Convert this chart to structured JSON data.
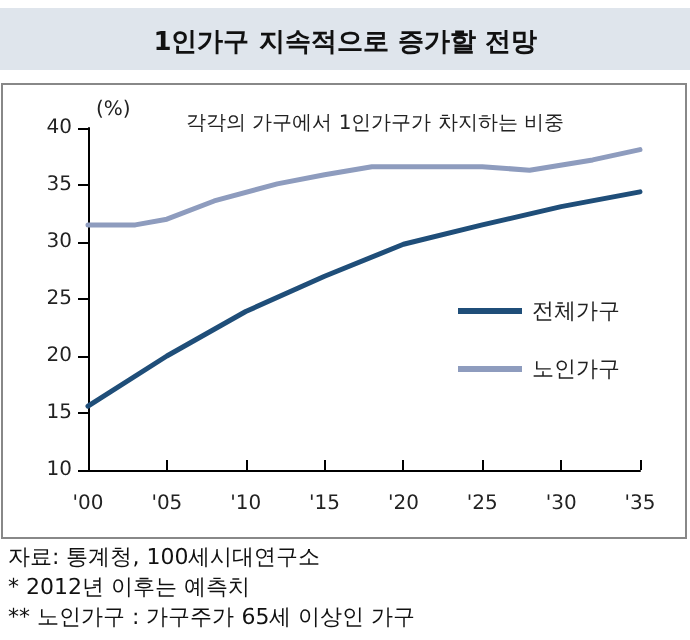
{
  "chart_data": {
    "type": "line",
    "title": "1인가구 지속적으로 증가할 전망",
    "subtitle": "각각의 가구에서 1인가구가 차지하는 비중",
    "ylabel": "(%)",
    "series": [
      {
        "name": "전체가구",
        "color": "#1f4e79",
        "x": [
          2000,
          2005,
          2010,
          2015,
          2020,
          2025,
          2030,
          2035
        ],
        "values": [
          15.6,
          20.0,
          23.9,
          27.0,
          29.8,
          31.5,
          33.1,
          34.4
        ]
      },
      {
        "name": "노인가구",
        "color": "#8e9cbe",
        "x": [
          2000,
          2003,
          2005,
          2008,
          2012,
          2015,
          2018,
          2025,
          2028,
          2032,
          2035
        ],
        "values": [
          31.5,
          31.5,
          32.0,
          33.6,
          35.1,
          35.9,
          36.6,
          36.6,
          36.3,
          37.2,
          38.1
        ]
      }
    ],
    "xlim": [
      2000,
      2035
    ],
    "xticks": [
      {
        "value": 2000,
        "label": "'00"
      },
      {
        "value": 2005,
        "label": "'05"
      },
      {
        "value": 2010,
        "label": "'10"
      },
      {
        "value": 2015,
        "label": "'15"
      },
      {
        "value": 2020,
        "label": "'20"
      },
      {
        "value": 2025,
        "label": "'25"
      },
      {
        "value": 2030,
        "label": "'30"
      },
      {
        "value": 2035,
        "label": "'35"
      }
    ],
    "ylim": [
      10,
      40
    ],
    "yticks": [
      10,
      15,
      20,
      25,
      30,
      35,
      40
    ],
    "grid": false,
    "legend": "right",
    "marker": "none",
    "line_style": "solid",
    "annotations": [
      "자료: 통계청, 100세시대연구소",
      "* 2012년 이후는 예측치",
      "** 노인가구 : 가구주가 65세 이상인 가구"
    ]
  }
}
